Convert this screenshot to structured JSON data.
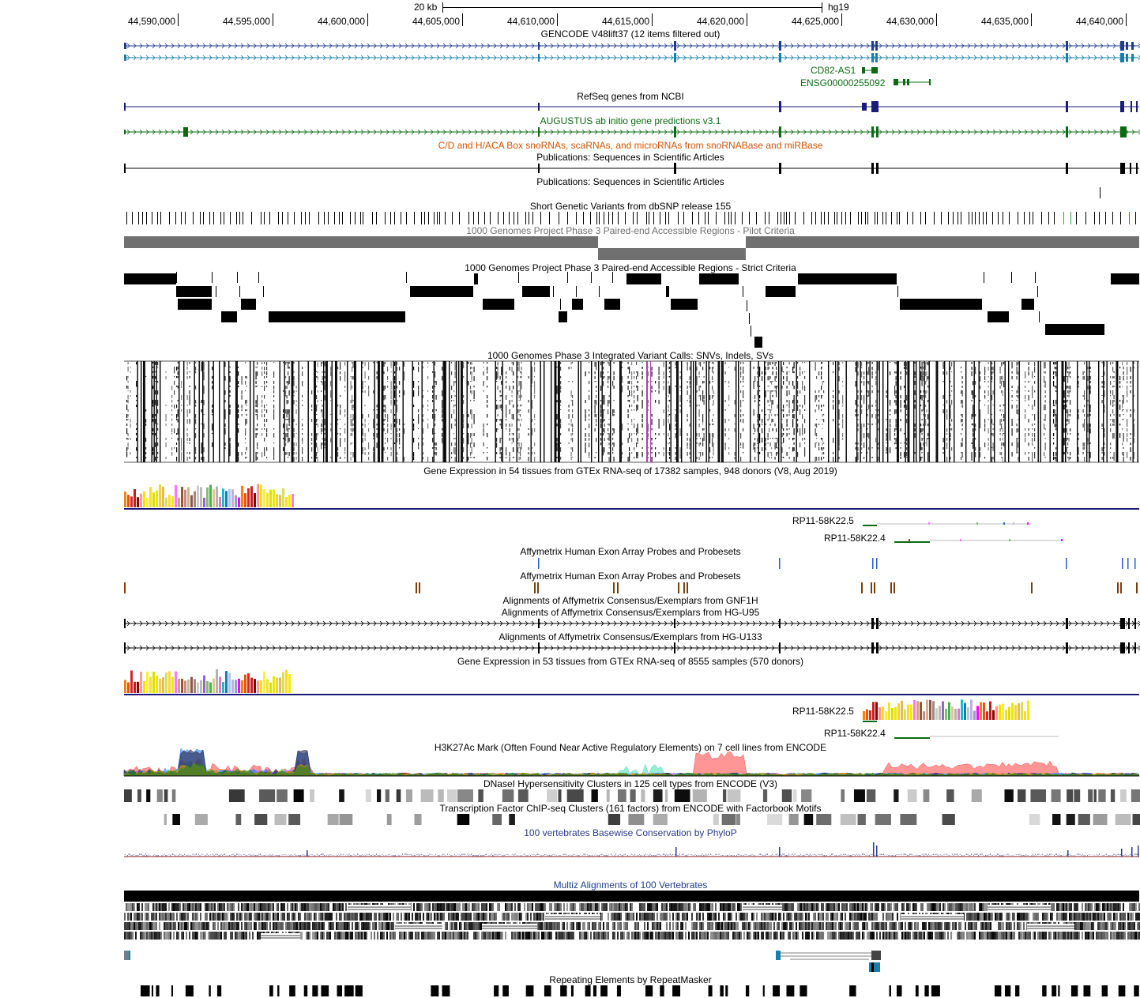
{
  "ruler": {
    "scale_label": "20 kb",
    "assembly": "hg19",
    "ticks": [
      "44,590,000",
      "44,595,000",
      "44,600,000",
      "44,605,000",
      "44,610,000",
      "44,615,000",
      "44,620,000",
      "44,625,000",
      "44,630,000",
      "44,635,000",
      "44,640,000"
    ]
  },
  "tracks": {
    "gencode": "GENCODE V48lift37 (12 items filtered out)",
    "gene_cd82": "CD82-AS1",
    "gene_ensg": "ENSG00000255092",
    "refseq": "RefSeq genes from NCBI",
    "augustus": "AUGUSTUS ab initio gene predictions v3.1",
    "snorna": "C/D and H/ACA Box snoRNAs, scaRNAs, and microRNAs from snoRNABase and miRBase",
    "pubs1": "Publications: Sequences in Scientific Articles",
    "pubs2": "Publications: Sequences in Scientific Articles",
    "dbsnp": "Short Genetic Variants from dbSNP release 155",
    "acc_pilot": "1000 Genomes Project Phase 3 Paired-end Accessible Regions - Pilot Criteria",
    "acc_strict": "1000 Genomes Project Phase 3 Paired-end Accessible Regions - Strict Criteria",
    "variant_calls": "1000 Genomes Phase 3 Integrated Variant Calls: SNVs, Indels, SVs",
    "gtex_v8": "Gene Expression in 54 tissues from GTEx RNA-seq of 17382 samples, 948 donors (V8, Aug 2019)",
    "gtex_gene1": "RP11-58K22.5",
    "gtex_gene2": "RP11-58K22.4",
    "affy_exon1": "Affymetrix Human Exon Array Probes and Probesets",
    "affy_exon2": "Affymetrix Human Exon Array Probes and Probesets",
    "gnf1h": "Alignments of Affymetrix Consensus/Exemplars from GNF1H",
    "hgu95": "Alignments of Affymetrix Consensus/Exemplars from HG-U95",
    "hgu133": "Alignments of Affymetrix Consensus/Exemplars from HG-U133",
    "gtex_53": "Gene Expression in 53 tissues from GTEx RNA-seq of 8555 samples (570 donors)",
    "gtex2_gene1": "RP11-58K22.5",
    "gtex2_gene2": "RP11-58K22.4",
    "h3k27ac": "H3K27Ac Mark (Often Found Near Active Regulatory Elements) on 7 cell lines from ENCODE",
    "dnase": "DNaseI Hypersensitivity Clusters in 125 cell types from ENCODE (V3)",
    "tfbs": "Transcription Factor ChIP-seq Clusters (161 factors) from ENCODE with Factorbook Motifs",
    "phylop": "100 vertebrates Basewise Conservation by PhyloP",
    "multiz": "Multiz Alignments of 100 Vertebrates",
    "rmsk": "Repeating Elements by RepeatMasker"
  },
  "colors": {
    "gencode": "#1f3d8c",
    "gencode2": "#1a7fa8",
    "augustus": "#0a6b12",
    "snorna": "#d35400",
    "phylop": "#2b3a8c",
    "pilot": "#707070",
    "affy1": "#2a5bd7",
    "affy2": "#7a3f0f"
  }
}
